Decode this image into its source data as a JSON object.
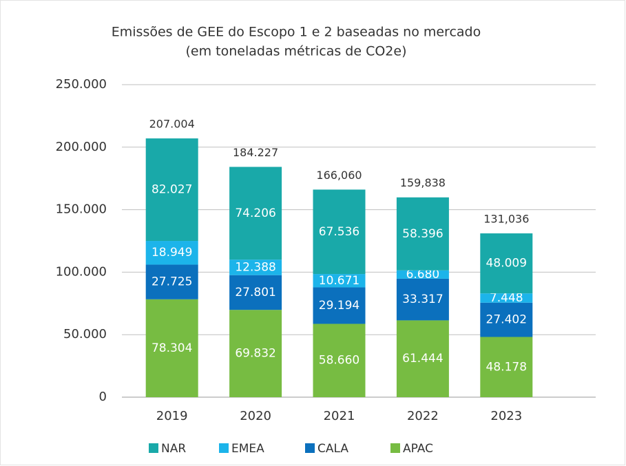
{
  "chart_data": {
    "type": "stacked_bar",
    "title": "Emissões de GEE do Escopo 1 e 2 baseadas no mercado",
    "subtitle": "(em toneladas métricas de CO2e)",
    "categories": [
      "2019",
      "2020",
      "2021",
      "2022",
      "2023"
    ],
    "series": [
      {
        "name": "NAR",
        "color": "#19a9a9",
        "values": [
          82027,
          74206,
          67536,
          58396,
          48009
        ],
        "value_labels": [
          "82.027",
          "74.206",
          "67.536",
          "58.396",
          "48.009"
        ]
      },
      {
        "name": "EMEA",
        "color": "#1cb4ea",
        "values": [
          18949,
          12388,
          10671,
          6680,
          7448
        ],
        "value_labels": [
          "18.949",
          "12.388",
          "10.671",
          "6.680",
          "7.448"
        ]
      },
      {
        "name": "CALA",
        "color": "#0b70bd",
        "values": [
          27725,
          27801,
          29194,
          33317,
          27402
        ],
        "value_labels": [
          "27.725",
          "27.801",
          "29.194",
          "33.317",
          "27.402"
        ]
      },
      {
        "name": "APAC",
        "color": "#77bc42",
        "values": [
          78304,
          69832,
          58660,
          61444,
          48178
        ],
        "value_labels": [
          "78.304",
          "69.832",
          "58.660",
          "61.444",
          "48.178"
        ]
      }
    ],
    "totals": {
      "values": [
        207004,
        184227,
        166060,
        159838,
        131036
      ],
      "value_labels": [
        "207.004",
        "184.227",
        "166,060",
        "159,838",
        "131,036"
      ]
    },
    "stack_order": "bottom_up_reversed",
    "ylim": [
      0,
      250000
    ],
    "yticks": [
      0,
      {
        "value": 50000,
        "label": "50.000"
      },
      {
        "value": 100000,
        "label": "100.000"
      },
      {
        "value": 150000,
        "label": "150.000"
      },
      {
        "value": 200000,
        "label": "200.000"
      },
      {
        "value": 250000,
        "label": "250.000"
      }
    ],
    "grid": true,
    "legend": "bottom"
  }
}
